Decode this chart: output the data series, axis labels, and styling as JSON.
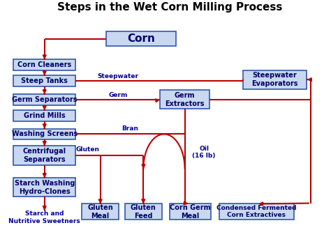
{
  "title": "Steps in the Wet Corn Milling Process",
  "title_fontsize": 11,
  "title_fontweight": "bold",
  "bg_color": "#ffffff",
  "box_fill": "#c8d8f0",
  "box_edge": "#3355aa",
  "box_text_color": "#000066",
  "arrow_color": "#bb0000",
  "label_color": "#000099",
  "boxes": {
    "corn": [
      0.3,
      0.865,
      0.22,
      0.068
    ],
    "corn_clean": [
      0.01,
      0.748,
      0.195,
      0.052
    ],
    "steep": [
      0.01,
      0.672,
      0.195,
      0.052
    ],
    "germ_sep": [
      0.01,
      0.583,
      0.195,
      0.052
    ],
    "grind": [
      0.01,
      0.507,
      0.195,
      0.052
    ],
    "washing": [
      0.01,
      0.42,
      0.195,
      0.052
    ],
    "centrifugal": [
      0.01,
      0.3,
      0.195,
      0.09
    ],
    "starch_wash": [
      0.01,
      0.148,
      0.195,
      0.09
    ],
    "germ_ext": [
      0.47,
      0.565,
      0.155,
      0.09
    ],
    "steepwater_ev": [
      0.73,
      0.66,
      0.2,
      0.09
    ],
    "gluten_meal": [
      0.225,
      0.04,
      0.115,
      0.075
    ],
    "gluten_feed": [
      0.36,
      0.04,
      0.115,
      0.075
    ],
    "corn_germ_meal": [
      0.5,
      0.04,
      0.13,
      0.075
    ],
    "cond_ferm": [
      0.655,
      0.04,
      0.235,
      0.075
    ]
  },
  "box_labels": {
    "corn": "Corn",
    "corn_clean": "Corn Cleaners",
    "steep": "Steep Tanks",
    "germ_sep": "Germ Separators",
    "grind": "Grind Mills",
    "washing": "Washing Screens",
    "centrifugal": "Centrifugal\nSeparators",
    "starch_wash": "Starch Washing\nHydro-Clones",
    "germ_ext": "Germ\nExtractors",
    "steepwater_ev": "Steepwater\nEvaporators",
    "gluten_meal": "Gluten\nMeal",
    "gluten_feed": "Gluten\nFeed",
    "corn_germ_meal": "Corn Germ\nMeal",
    "cond_ferm": "Condensed Fermented\nCorn Extractives"
  },
  "box_fontsize": {
    "corn": 11,
    "corn_clean": 7,
    "steep": 7,
    "germ_sep": 7,
    "grind": 7,
    "washing": 7,
    "centrifugal": 7,
    "starch_wash": 7,
    "germ_ext": 7,
    "steepwater_ev": 7,
    "gluten_meal": 7,
    "gluten_feed": 7,
    "corn_germ_meal": 7,
    "cond_ferm": 6.5
  },
  "starch_label": "Starch and\nNutritive Sweetners",
  "starch_label_color": "#000099"
}
